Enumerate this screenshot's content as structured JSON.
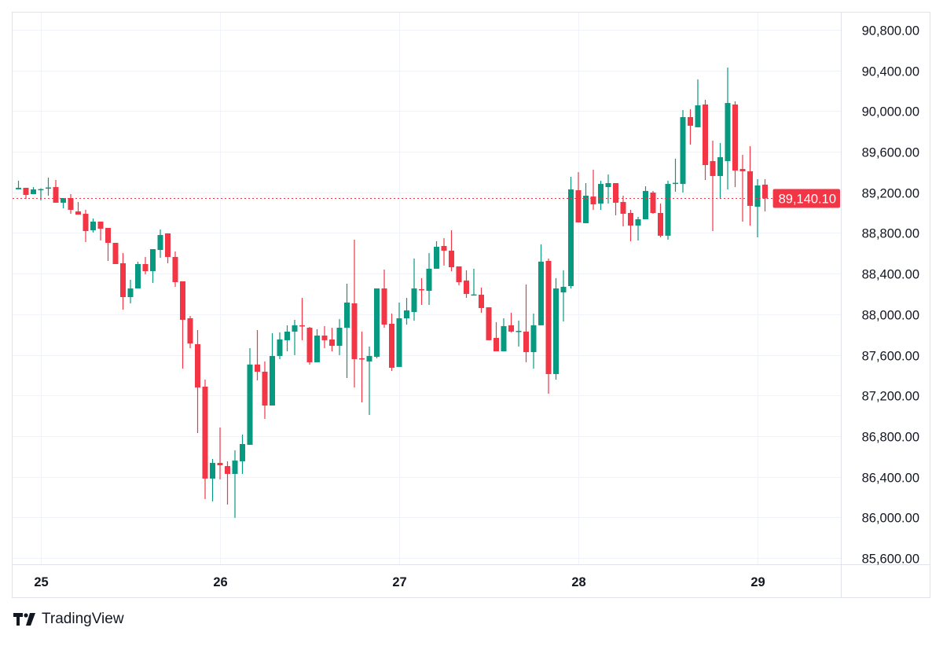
{
  "chart_data": {
    "type": "candlestick",
    "interval": "1h",
    "first_candle": "24 21:00",
    "x_tick_labels": [
      "25",
      "26",
      "27",
      "28",
      "29"
    ],
    "ylim": [
      85600,
      90800
    ],
    "y_ticks": [
      90800,
      90400,
      90000,
      89600,
      89200,
      88800,
      88400,
      88000,
      87600,
      87200,
      86800,
      86400,
      86000,
      85600
    ],
    "grid": true,
    "last_price": 89140.1,
    "last_price_label": "89,140.10",
    "colors": {
      "up": "#089981",
      "down": "#F23645",
      "grid": "#F0F3FA",
      "text": "#131722"
    },
    "candles_ohlc": [
      [
        89230,
        89315,
        89230,
        89245
      ],
      [
        89245,
        89245,
        89136,
        89175
      ],
      [
        89183,
        89252,
        89183,
        89229
      ],
      [
        89229,
        89240,
        89121,
        89232
      ],
      [
        89245,
        89345,
        89167,
        89248
      ],
      [
        89252,
        89322,
        89098,
        89098
      ],
      [
        89098,
        89144,
        89043,
        89144
      ],
      [
        89144,
        89183,
        88989,
        89028
      ],
      [
        89012,
        89105,
        88981,
        88981
      ],
      [
        88989,
        89028,
        88711,
        88819
      ],
      [
        88827,
        88943,
        88804,
        88912
      ],
      [
        88912,
        88912,
        88726,
        88842
      ],
      [
        88850,
        88850,
        88525,
        88703
      ],
      [
        88703,
        88703,
        88494,
        88494
      ],
      [
        88502,
        88602,
        88045,
        88169
      ],
      [
        88169,
        88339,
        88107,
        88254
      ],
      [
        88254,
        88517,
        88254,
        88494
      ],
      [
        88494,
        88564,
        88393,
        88424
      ],
      [
        88424,
        88641,
        88308,
        88641
      ],
      [
        88633,
        88834,
        88556,
        88780
      ],
      [
        88796,
        88796,
        88502,
        88564
      ],
      [
        88564,
        88618,
        88270,
        88316
      ],
      [
        88324,
        88324,
        87465,
        87945
      ],
      [
        87960,
        87983,
        87666,
        87712
      ],
      [
        87705,
        87844,
        86830,
        87279
      ],
      [
        87287,
        87357,
        86180,
        86382
      ],
      [
        86382,
        86575,
        86157,
        86536
      ],
      [
        86536,
        86885,
        86374,
        86513
      ],
      [
        86505,
        86552,
        86126,
        86428
      ],
      [
        86428,
        86660,
        85995,
        86559
      ],
      [
        86552,
        86815,
        86428,
        86722
      ],
      [
        86714,
        87666,
        86714,
        87505
      ],
      [
        87505,
        87844,
        87349,
        87434
      ],
      [
        87434,
        87535,
        86970,
        87101
      ],
      [
        87101,
        87813,
        87101,
        87589
      ],
      [
        87589,
        87821,
        87558,
        87752
      ],
      [
        87744,
        87891,
        87635,
        87829
      ],
      [
        87829,
        87945,
        87597,
        87891
      ],
      [
        87891,
        88161,
        87744,
        87883
      ],
      [
        87867,
        87875,
        87504,
        87527
      ],
      [
        87527,
        87852,
        87527,
        87790
      ],
      [
        87790,
        87883,
        87666,
        87744
      ],
      [
        87751,
        87867,
        87635,
        87689
      ],
      [
        87689,
        87952,
        87597,
        87867
      ],
      [
        87867,
        88301,
        87372,
        88115
      ],
      [
        88107,
        88734,
        87279,
        87558
      ],
      [
        87566,
        87829,
        87132,
        87558
      ],
      [
        87535,
        87682,
        87008,
        87589
      ],
      [
        87581,
        88254,
        87566,
        88254
      ],
      [
        88254,
        88440,
        87867,
        87898
      ],
      [
        87906,
        88007,
        87442,
        87473
      ],
      [
        87481,
        88115,
        87481,
        87960
      ],
      [
        87960,
        88161,
        87898,
        88038
      ],
      [
        88022,
        88548,
        87937,
        88254
      ],
      [
        88247,
        88355,
        88092,
        88239
      ],
      [
        88231,
        88602,
        88092,
        88448
      ],
      [
        88448,
        88719,
        88448,
        88664
      ],
      [
        88672,
        88749,
        88479,
        88626
      ],
      [
        88626,
        88827,
        88424,
        88463
      ],
      [
        88471,
        88471,
        88285,
        88316
      ],
      [
        88332,
        88432,
        88161,
        88200
      ],
      [
        88192,
        88448,
        88192,
        88195
      ],
      [
        88192,
        88262,
        88014,
        88061
      ],
      [
        88068,
        88068,
        87744,
        87744
      ],
      [
        87767,
        87922,
        87635,
        87635
      ],
      [
        87635,
        87960,
        87635,
        87883
      ],
      [
        87891,
        88014,
        87821,
        87829
      ],
      [
        87829,
        87937,
        87682,
        87836
      ],
      [
        87829,
        88293,
        87527,
        87627
      ],
      [
        87627,
        88007,
        87465,
        87891
      ],
      [
        87891,
        88688,
        87891,
        88518
      ],
      [
        88525,
        88548,
        87217,
        87411
      ],
      [
        87411,
        88355,
        87357,
        88254
      ],
      [
        88215,
        88432,
        87929,
        88270
      ],
      [
        88277,
        89353,
        88254,
        89229
      ],
      [
        89221,
        89399,
        88904,
        88904
      ],
      [
        88896,
        89291,
        88896,
        89167
      ],
      [
        89159,
        89423,
        89028,
        89082
      ],
      [
        89090,
        89314,
        89028,
        89283
      ],
      [
        89252,
        89376,
        89090,
        89291
      ],
      [
        89291,
        89291,
        88974,
        89098
      ],
      [
        89105,
        89167,
        88865,
        88989
      ],
      [
        88997,
        89028,
        88718,
        88873
      ],
      [
        88873,
        88958,
        88726,
        88935
      ],
      [
        88935,
        89260,
        88935,
        89214
      ],
      [
        89198,
        89214,
        88989,
        88997
      ],
      [
        88997,
        89090,
        88757,
        88773
      ],
      [
        88773,
        89314,
        88734,
        89283
      ],
      [
        89291,
        89531,
        89206,
        89294
      ],
      [
        89283,
        90011,
        89198,
        89941
      ],
      [
        89941,
        90018,
        89670,
        89856
      ],
      [
        89841,
        90312,
        89841,
        90057
      ],
      [
        90065,
        90111,
        89322,
        89469
      ],
      [
        89508,
        89709,
        88819,
        89361
      ],
      [
        89361,
        89686,
        89136,
        89546
      ],
      [
        89508,
        90429,
        89229,
        90080
      ],
      [
        90065,
        90096,
        89252,
        89415
      ],
      [
        89430,
        89570,
        88912,
        89407
      ],
      [
        89407,
        89655,
        88873,
        89067
      ],
      [
        89059,
        89330,
        88757,
        89268
      ],
      [
        89276,
        89330,
        89012,
        89140.1
      ]
    ]
  },
  "branding": {
    "logo_text": "TradingView",
    "logo_mark": "TV"
  }
}
